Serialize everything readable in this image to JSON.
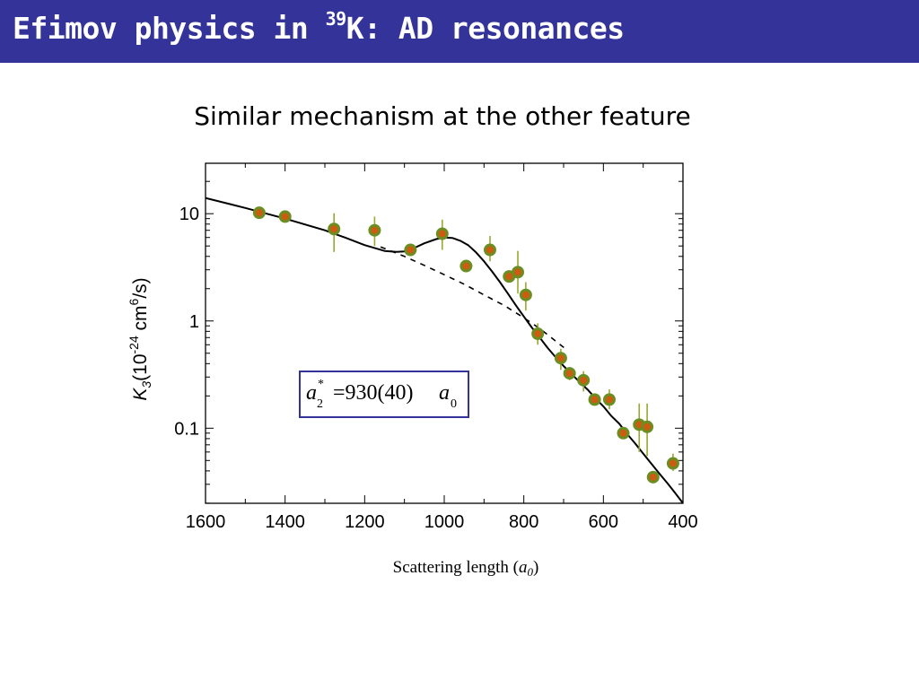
{
  "slide": {
    "title_main": "Efimov physics in ",
    "title_sup": "39",
    "title_rest": "K: AD resonances",
    "subtitle": "Similar mechanism at the other feature"
  },
  "annotation": {
    "symbol": "a",
    "subscript": "2",
    "superscript": "*",
    "value": "=930(40)",
    "unit_symbol": "a",
    "unit_subscript": "0"
  },
  "colors": {
    "header_bg": "#333399",
    "marker_face": "#cc5c10",
    "marker_edge": "#6b8e23",
    "errorbar": "#9aa830"
  },
  "chart_data": {
    "type": "scatter",
    "title": "",
    "xlabel_text": "Scattering length (",
    "xlabel_symbol": "a",
    "xlabel_sub": "0",
    "xlabel_close": ")",
    "ylabel_parts": {
      "k": "K",
      "k_sub": "3",
      "open": "(10",
      "exp": "-24",
      "cm": " cm",
      "cm_exp": "6",
      "close": "/s)"
    },
    "xlim": [
      1600,
      400
    ],
    "ylim_log10": [
      -1.7,
      1.47
    ],
    "y_scale": "log",
    "x_ticks": [
      {
        "value": 1600,
        "label": "1600"
      },
      {
        "value": 1400,
        "label": "1400"
      },
      {
        "value": 1200,
        "label": "1200"
      },
      {
        "value": 1000,
        "label": "1000"
      },
      {
        "value": 800,
        "label": "800"
      },
      {
        "value": 600,
        "label": "600"
      },
      {
        "value": 400,
        "label": "400"
      }
    ],
    "y_ticks": [
      {
        "value": 10,
        "label": "10"
      },
      {
        "value": 1,
        "label": "1"
      },
      {
        "value": 0.1,
        "label": "0.1"
      }
    ],
    "series": [
      {
        "name": "",
        "kind": "points",
        "x": [
          1465,
          1400,
          1277,
          1175,
          1085,
          1005,
          945,
          885,
          837,
          815,
          795,
          765,
          707,
          685,
          650,
          622,
          585,
          550,
          510,
          490,
          475,
          425
        ],
        "y": [
          10.2,
          9.4,
          7.2,
          7.0,
          4.6,
          6.5,
          3.25,
          4.6,
          2.6,
          2.85,
          1.75,
          0.76,
          0.45,
          0.325,
          0.28,
          0.185,
          0.185,
          0.09,
          0.108,
          0.103,
          0.035,
          0.047
        ],
        "yerr_low": [
          9.6,
          8.6,
          4.4,
          5.0,
          4.4,
          4.6,
          3.1,
          3.6,
          2.3,
          1.8,
          1.25,
          0.6,
          0.35,
          0.28,
          0.22,
          0.165,
          0.15,
          0.085,
          0.06,
          0.055,
          0.033,
          0.04
        ],
        "yerr_high": [
          10.8,
          10.3,
          10.1,
          9.4,
          4.9,
          8.8,
          3.4,
          6.2,
          2.9,
          4.5,
          2.3,
          0.95,
          0.55,
          0.37,
          0.34,
          0.21,
          0.23,
          0.095,
          0.17,
          0.17,
          0.037,
          0.058
        ]
      },
      {
        "name": "",
        "kind": "solid-line",
        "x": [
          1600,
          1500,
          1400,
          1300,
          1250,
          1200,
          1150,
          1120,
          1100,
          1080,
          1050,
          1020,
          1000,
          980,
          960,
          940,
          920,
          900,
          880,
          860,
          840,
          820,
          800,
          780,
          760,
          740,
          720,
          700,
          680,
          660,
          640,
          620,
          600,
          580,
          560,
          540,
          520,
          500,
          480,
          460,
          440,
          420,
          400
        ],
        "y": [
          14.0,
          11.3,
          9.0,
          7.0,
          6.0,
          5.1,
          4.5,
          4.4,
          4.45,
          4.7,
          5.3,
          5.8,
          6.0,
          5.95,
          5.6,
          5.1,
          4.35,
          3.6,
          2.9,
          2.3,
          1.8,
          1.4,
          1.1,
          0.87,
          0.7,
          0.56,
          0.46,
          0.38,
          0.32,
          0.27,
          0.23,
          0.19,
          0.16,
          0.13,
          0.11,
          0.088,
          0.072,
          0.058,
          0.047,
          0.038,
          0.031,
          0.025,
          0.02
        ]
      },
      {
        "name": "",
        "kind": "dashed-line",
        "x": [
          1160,
          1100,
          1050,
          1000,
          950,
          900,
          850,
          800,
          760,
          720,
          690
        ],
        "y": [
          4.9,
          4.0,
          3.3,
          2.7,
          2.2,
          1.75,
          1.4,
          1.07,
          0.85,
          0.65,
          0.53
        ]
      }
    ],
    "grid": false,
    "legend": "none"
  }
}
